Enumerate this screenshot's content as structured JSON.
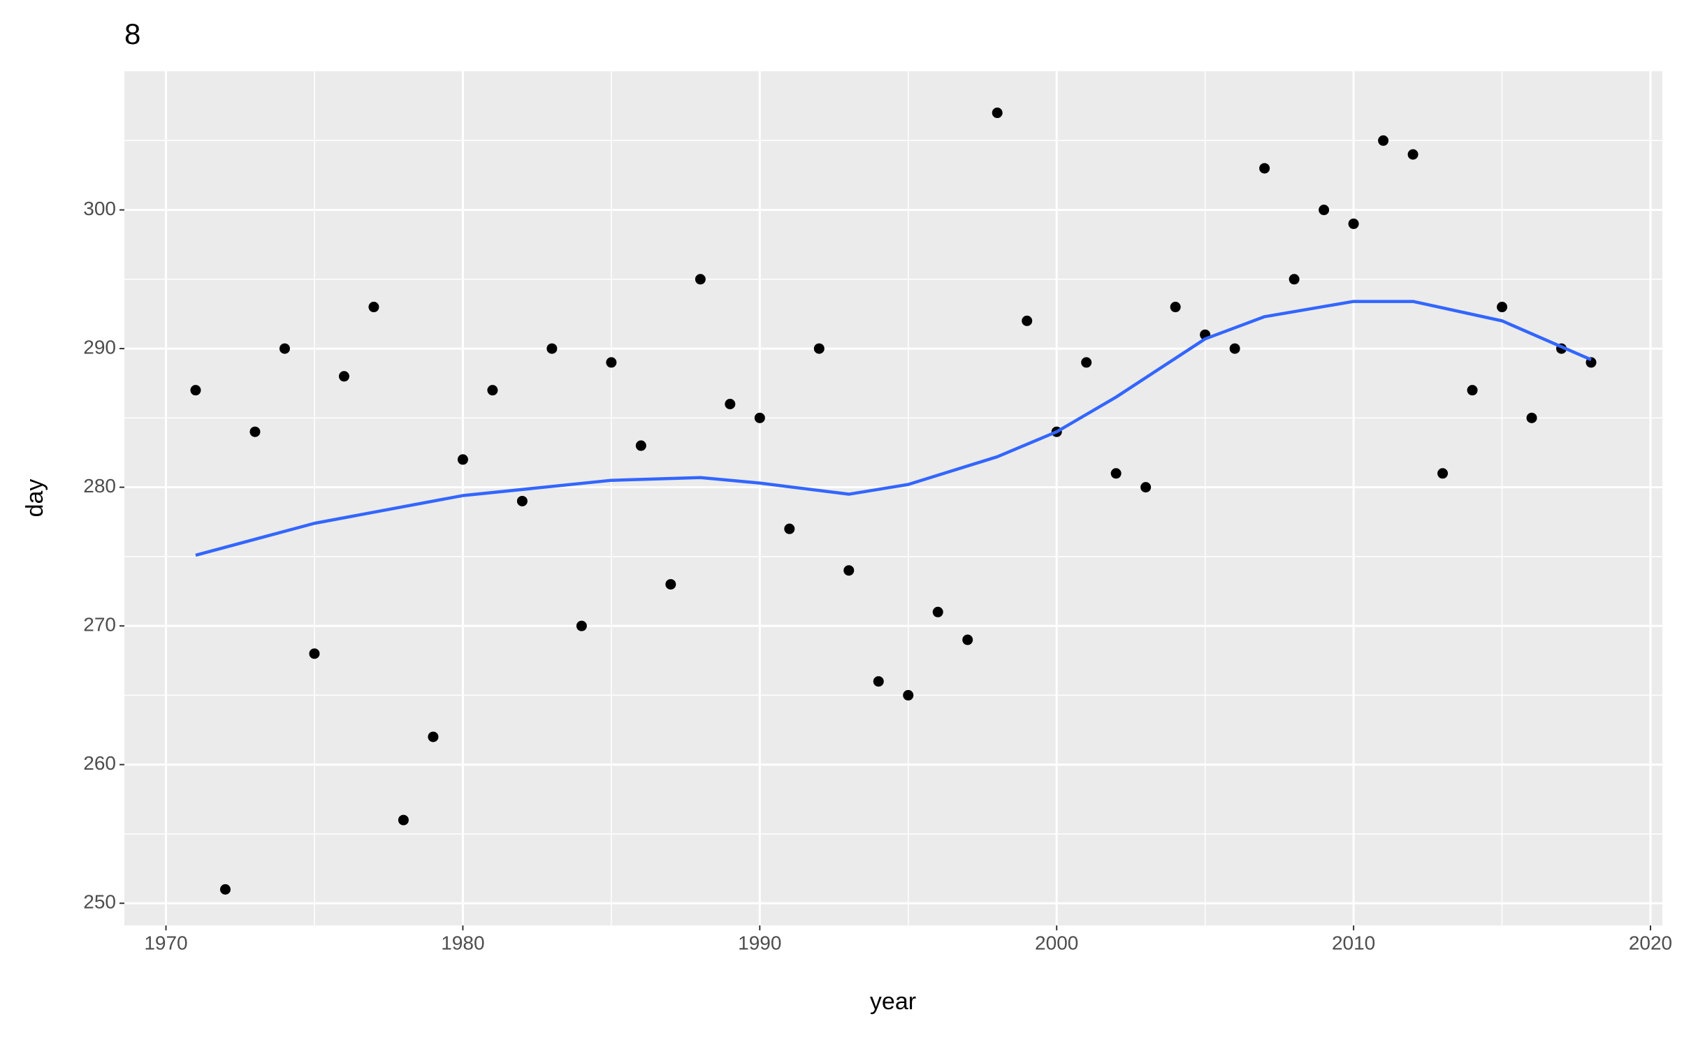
{
  "chart_data": {
    "type": "scatter",
    "title": "8",
    "x_label": "year",
    "y_label": "day",
    "x": [
      1971,
      1972,
      1973,
      1974,
      1975,
      1976,
      1977,
      1978,
      1979,
      1980,
      1981,
      1982,
      1983,
      1984,
      1985,
      1986,
      1987,
      1988,
      1989,
      1990,
      1991,
      1992,
      1993,
      1994,
      1995,
      1996,
      1997,
      1998,
      1999,
      2000,
      2001,
      2002,
      2003,
      2004,
      2005,
      2006,
      2007,
      2008,
      2009,
      2010,
      2011,
      2012,
      2013,
      2014,
      2015,
      2016,
      2017,
      2018
    ],
    "values": [
      287,
      251,
      284,
      290,
      268,
      288,
      293,
      256,
      262,
      282,
      287,
      279,
      290,
      270,
      289,
      283,
      273,
      295,
      286,
      285,
      277,
      290,
      274,
      266,
      265,
      271,
      269,
      307,
      292,
      284,
      289,
      281,
      280,
      293,
      291,
      290,
      303,
      295,
      300,
      299,
      305,
      304,
      281,
      287,
      293,
      285,
      290,
      289
    ],
    "color": "#000000",
    "smooth": {
      "x": [
        1971,
        1975,
        1980,
        1985,
        1988,
        1990,
        1993,
        1995,
        1998,
        2000,
        2002,
        2004,
        2005,
        2007,
        2010,
        2012,
        2015,
        2018
      ],
      "values": [
        275.1,
        277.4,
        279.4,
        280.5,
        280.7,
        280.3,
        279.5,
        280.2,
        282.2,
        284.0,
        286.5,
        289.3,
        290.7,
        292.3,
        293.4,
        293.4,
        292.0,
        289.2
      ],
      "color": "#3366FF"
    },
    "xlim": [
      1968.6,
      2020.4
    ],
    "ylim": [
      248.4,
      310.0
    ],
    "xticks": [
      1970,
      1980,
      1990,
      2000,
      2010,
      2020
    ],
    "yticks": [
      250,
      260,
      270,
      280,
      290,
      300
    ],
    "grid": true
  }
}
